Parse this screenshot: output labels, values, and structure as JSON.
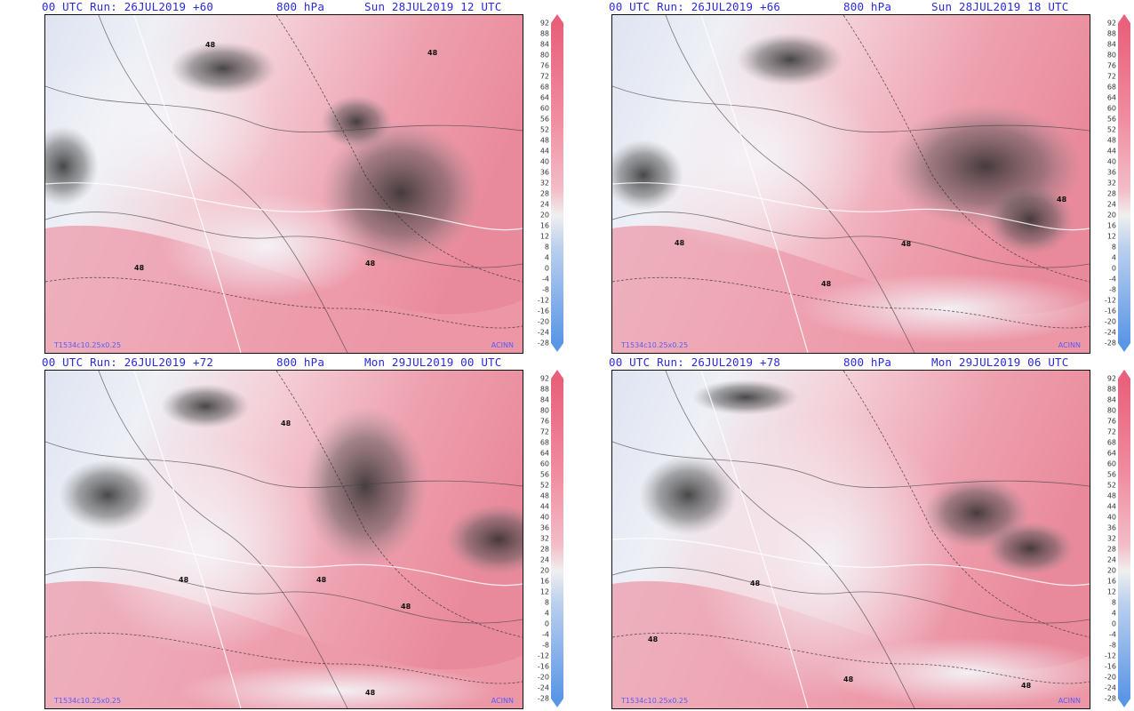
{
  "panels": [
    {
      "run_label": "00 UTC Run: 26JUL2019 +60",
      "level": "800 hPa",
      "valid": "Sun 28JUL2019 12 UTC",
      "model": "T1534c10.25x0.25",
      "credit": "ACINN"
    },
    {
      "run_label": "00 UTC Run: 26JUL2019 +66",
      "level": "800 hPa",
      "valid": "Sun 28JUL2019 18 UTC",
      "model": "T1534c10.25x0.25",
      "credit": "ACINN"
    },
    {
      "run_label": "00 UTC Run: 26JUL2019 +72",
      "level": "800 hPa",
      "valid": "Mon 29JUL2019 00 UTC",
      "model": "T1534c10.25x0.25",
      "credit": "ACINN"
    },
    {
      "run_label": "00 UTC Run: 26JUL2019 +78",
      "level": "800 hPa",
      "valid": "Mon 29JUL2019 06 UTC",
      "model": "T1534c10.25x0.25",
      "credit": "ACINN"
    }
  ],
  "colorbar": {
    "ticks": [
      "92",
      "88",
      "84",
      "80",
      "76",
      "72",
      "68",
      "64",
      "60",
      "56",
      "52",
      "48",
      "44",
      "40",
      "36",
      "32",
      "28",
      "24",
      "20",
      "16",
      "12",
      "8",
      "4",
      "0",
      "-4",
      "-8",
      "-12",
      "-16",
      "-20",
      "-24",
      "-28"
    ],
    "colors": {
      "high": "#e8607a",
      "mid_high": "#f3bcc7",
      "neutral": "#efefef",
      "mid_low": "#bcd0ee",
      "low": "#5a96e6"
    }
  },
  "contour_label": "48"
}
